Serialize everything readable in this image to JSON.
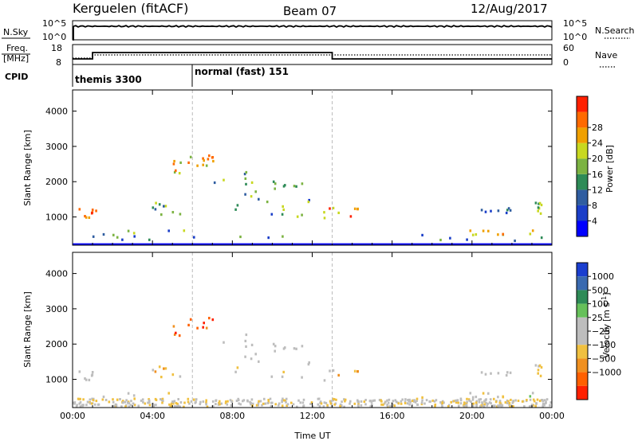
{
  "header": {
    "title": "Kerguelen (fitACF)",
    "beam": "Beam 07",
    "date": "12/Aug/2017"
  },
  "labels": {
    "nsky": "N.Sky",
    "nsearch": "N.Search",
    "freq_line1": "Freq.",
    "freq_line2": "[MHz]",
    "nave": "Nave",
    "cpid": "CPID",
    "nsky_tick_top": "10^5",
    "nsky_tick_bottom": "10^0",
    "nsearch_tick_top": "10^5",
    "nsearch_tick_bottom": "10^0",
    "freq_tick_top": "18",
    "freq_tick_bottom": "8",
    "nave_tick_top": "60",
    "nave_tick_bottom": "0",
    "cpid_program_1": "themis 3300",
    "cpid_program_2": "normal (fast) 151",
    "power_colorbar_label": "Power [dB]",
    "velocity_colorbar_label": "Velocity",
    "velocity_colorbar_unit": "[m s",
    "velocity_colorbar_unit_sup": "-1",
    "velocity_colorbar_unit_end": "]",
    "ylabel_top": "Slant Range [km]",
    "ylabel_bottom": "Slant Range [km]",
    "xlabel": "Time UT"
  },
  "chart_data": [
    {
      "type": "heatmap",
      "name": "power",
      "ylabel": "Slant Range [km]",
      "ylim": [
        200,
        4600
      ],
      "yticks": [
        "1000",
        "2000",
        "3000",
        "4000"
      ],
      "xlim_hours": [
        0,
        24
      ],
      "xticks": [
        "00:00",
        "04:00",
        "08:00",
        "12:00",
        "16:00",
        "20:00",
        "00:00"
      ],
      "colorbar": {
        "label": "Power [dB]",
        "ticks": [
          "4",
          "8",
          "12",
          "16",
          "20",
          "24",
          "28"
        ],
        "colors": [
          "#0000ff",
          "#1a3ec8",
          "#2f5da0",
          "#2e8b57",
          "#7cb342",
          "#c8d820",
          "#f0a000",
          "#ff6a00",
          "#ff2000"
        ]
      }
    },
    {
      "type": "heatmap",
      "name": "velocity",
      "ylabel": "Slant Range [km]",
      "ylim": [
        200,
        4600
      ],
      "yticks": [
        "1000",
        "2000",
        "3000",
        "4000"
      ],
      "xlim_hours": [
        0,
        24
      ],
      "xticks": [
        "00:00",
        "04:00",
        "08:00",
        "12:00",
        "16:00",
        "20:00",
        "00:00"
      ],
      "xlabel": "Time UT",
      "colorbar": {
        "label": "Velocity",
        "ticks": [
          "1000",
          "500",
          "100",
          "25",
          "−25",
          "−100",
          "−500",
          "−1000"
        ],
        "colors": [
          "#1a3ecf",
          "#3a6ab0",
          "#2e8b57",
          "#66c05a",
          "#bdbdbd",
          "#bdbdbd",
          "#f0c040",
          "#f09020",
          "#ff6000",
          "#ff2000"
        ]
      }
    }
  ]
}
